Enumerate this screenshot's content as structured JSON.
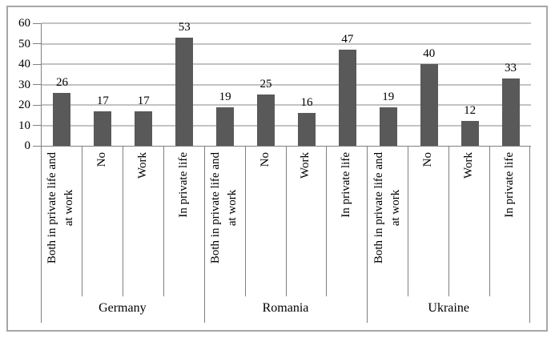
{
  "chart_data": {
    "type": "bar",
    "title": "",
    "xlabel": "",
    "ylabel": "",
    "ylim": [
      0,
      60
    ],
    "yticks": [
      0,
      10,
      20,
      30,
      40,
      50,
      60
    ],
    "grid": true,
    "legend": false,
    "bar_color": "#595959",
    "gridline_color": "#c3c3c3",
    "axis_color": "#808080",
    "frame_border_color": "#a6a6a6",
    "categories_per_group": [
      "Both in private life and\nat work",
      "No",
      "Work",
      "In private life"
    ],
    "groups": [
      {
        "name": "Germany",
        "values": [
          26,
          17,
          17,
          53
        ]
      },
      {
        "name": "Romania",
        "values": [
          19,
          25,
          16,
          47
        ]
      },
      {
        "name": "Ukraine",
        "values": [
          19,
          40,
          12,
          33
        ]
      }
    ]
  }
}
